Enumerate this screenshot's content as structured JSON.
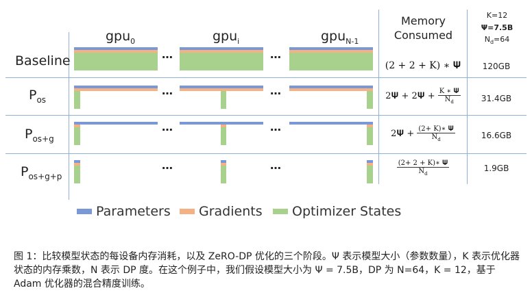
{
  "header": {
    "gpu0": "gpu",
    "gpu0_sub": "0",
    "gpui": "gpu",
    "gpui_sub": "i",
    "gpun": "gpu",
    "gpun_sub": "N-1",
    "ellipsis": "…",
    "memory_consumed": "Memory Consumed",
    "params_k": "K=12",
    "params_psi": "Ψ=7.5B",
    "params_nd": "N",
    "params_nd_sub": "d",
    "params_nd_val": "=64"
  },
  "rows": [
    {
      "label": "Baseline",
      "label_sub": "",
      "formula": "(2 + 2 + K) ∗ 𝚿",
      "value": "120GB"
    },
    {
      "label": "P",
      "label_sub": "os",
      "formula_a": "2𝚿 + 2𝚿 +",
      "num": "K ∗ 𝚿",
      "den": "N",
      "den_sub": "d",
      "value": "31.4GB"
    },
    {
      "label": "P",
      "label_sub": "os+g",
      "formula_a": "2𝚿 +",
      "num": "(2+ K)∗ 𝚿",
      "den": "N",
      "den_sub": "d",
      "value": "16.6GB"
    },
    {
      "label": "P",
      "label_sub": "os+g+p",
      "num": "(2+ 2 + K)∗ 𝚿",
      "den": "N",
      "den_sub": "d",
      "value": "1.9GB"
    }
  ],
  "legend": {
    "parameters": "Parameters",
    "gradients": "Gradients",
    "optimizer": "Optimizer States"
  },
  "colors": {
    "parameters": "#7b98d6",
    "gradients": "#f4b183",
    "optimizer": "#a9d18e"
  },
  "caption": "图 1：比较模型状态的每设备内存消耗，以及 ZeRO-DP 优化的三个阶段。Ψ 表示模型大小（参数数量），K 表示优化器状态的内存乘数，N 表示 DP 度。在这个例子中，我们假设模型大小为 Ψ = 7.5B，DP 为 N=64，K = 12，基于 Adam 优化器的混合精度训练。"
}
